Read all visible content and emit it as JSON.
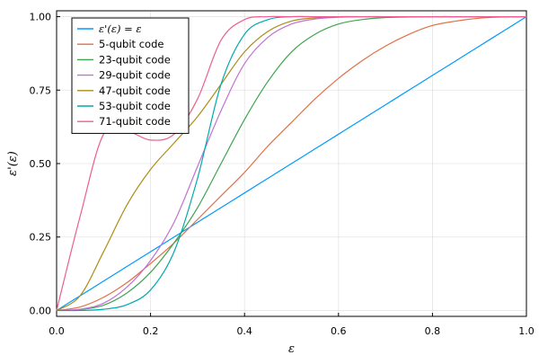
{
  "chart_data": {
    "type": "line",
    "title": "",
    "xlabel": "ε",
    "ylabel": "ε'(ε)",
    "xlim": [
      0,
      1
    ],
    "ylim": [
      -0.02,
      1.02
    ],
    "xticks": [
      0,
      0.2,
      0.4,
      0.6,
      0.8,
      1
    ],
    "xtick_labels": [
      "0.0",
      "0.2",
      "0.4",
      "0.6",
      "0.8",
      "1.0"
    ],
    "yticks": [
      0,
      0.25,
      0.5,
      0.75,
      1
    ],
    "ytick_labels": [
      "0.00",
      "0.25",
      "0.50",
      "0.75",
      "1.00"
    ],
    "grid": true,
    "legend_position": "top-left",
    "x": [
      0,
      0.05,
      0.1,
      0.15,
      0.2,
      0.25,
      0.3,
      0.35,
      0.4,
      0.45,
      0.5,
      0.55,
      0.6,
      0.65,
      0.7,
      0.75,
      0.8,
      0.85,
      0.9,
      0.95,
      1.0
    ],
    "series": [
      {
        "name": "ε'(ε) = ε",
        "color": "#009AFA",
        "values": [
          0,
          0.05,
          0.1,
          0.15,
          0.2,
          0.25,
          0.3,
          0.35,
          0.4,
          0.45,
          0.5,
          0.55,
          0.6,
          0.65,
          0.7,
          0.75,
          0.8,
          0.85,
          0.9,
          0.95,
          1.0
        ]
      },
      {
        "name": "5-qubit code",
        "color": "#E36F47",
        "values": [
          0,
          0.012,
          0.045,
          0.095,
          0.16,
          0.23,
          0.31,
          0.39,
          0.47,
          0.56,
          0.64,
          0.72,
          0.79,
          0.85,
          0.9,
          0.94,
          0.97,
          0.985,
          0.995,
          0.999,
          1.0
        ]
      },
      {
        "name": "23-qubit code",
        "color": "#3EA44E",
        "values": [
          0,
          0.003,
          0.018,
          0.06,
          0.13,
          0.23,
          0.35,
          0.5,
          0.65,
          0.78,
          0.88,
          0.94,
          0.975,
          0.99,
          0.997,
          0.999,
          1.0,
          1.0,
          1.0,
          1.0,
          1.0
        ]
      },
      {
        "name": "29-qubit code",
        "color": "#C371D2",
        "values": [
          0,
          0.004,
          0.025,
          0.08,
          0.17,
          0.3,
          0.49,
          0.68,
          0.84,
          0.93,
          0.975,
          0.992,
          0.998,
          1.0,
          1.0,
          1.0,
          1.0,
          1.0,
          1.0,
          1.0,
          1.0
        ]
      },
      {
        "name": "47-qubit code",
        "color": "#AC8D18",
        "values": [
          0,
          0.05,
          0.2,
          0.36,
          0.48,
          0.57,
          0.66,
          0.77,
          0.88,
          0.95,
          0.985,
          0.996,
          1.0,
          1.0,
          1.0,
          1.0,
          1.0,
          1.0,
          1.0,
          1.0,
          1.0
        ]
      },
      {
        "name": "53-qubit code",
        "color": "#00A9AD",
        "values": [
          0,
          0.0,
          0.004,
          0.02,
          0.07,
          0.2,
          0.45,
          0.77,
          0.94,
          0.99,
          1.0,
          1.0,
          1.0,
          1.0,
          1.0,
          1.0,
          1.0,
          1.0,
          1.0,
          1.0,
          1.0
        ]
      },
      {
        "name": "71-qubit code",
        "color": "#ED5D92",
        "values": [
          0,
          0.32,
          0.6,
          0.61,
          0.58,
          0.6,
          0.72,
          0.92,
          0.99,
          1.0,
          1.0,
          1.0,
          1.0,
          1.0,
          1.0,
          1.0,
          1.0,
          1.0,
          1.0,
          1.0,
          1.0
        ]
      }
    ]
  }
}
